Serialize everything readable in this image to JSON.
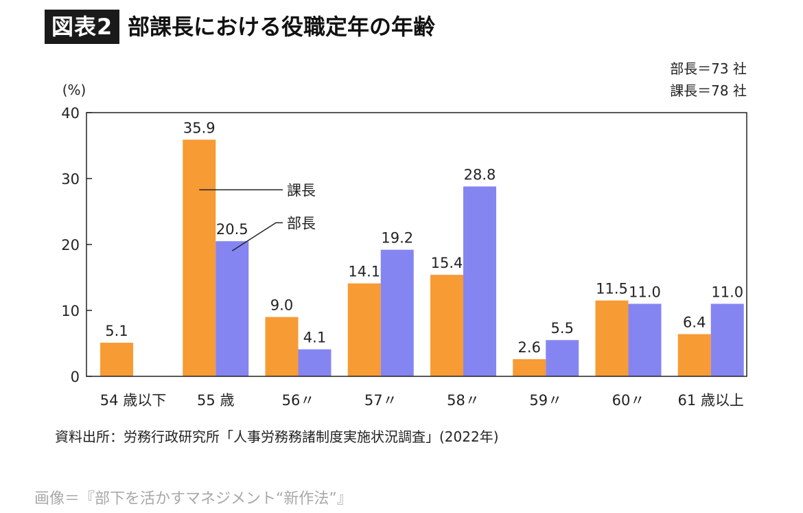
{
  "header": {
    "tag": "図表2",
    "title": "部課長における役職定年の年齢",
    "count_bucho": "部長＝73 社",
    "count_kacho": "課長＝78 社"
  },
  "chart_data": {
    "type": "bar",
    "ylabel": "(%)",
    "ylim": [
      0,
      40
    ],
    "yticks": [
      0,
      10,
      20,
      30,
      40
    ],
    "categories": [
      "54 歳以下",
      "55 歳",
      "56〃",
      "57〃",
      "58〃",
      "59〃",
      "60〃",
      "61 歳以上"
    ],
    "series": [
      {
        "name": "課長",
        "color": "#f79b34",
        "values": [
          5.1,
          35.9,
          9.0,
          14.1,
          15.4,
          2.6,
          11.5,
          6.4
        ],
        "labels": [
          "5.1",
          "35.9",
          "9.0",
          "14.1",
          "15.4",
          "2.6",
          "11.5",
          "6.4"
        ]
      },
      {
        "name": "部長",
        "color": "#8585f2",
        "values": [
          null,
          20.5,
          4.1,
          19.2,
          28.8,
          5.5,
          11.0,
          11.0
        ],
        "labels": [
          "",
          "20.5",
          "4.1",
          "19.2",
          "28.8",
          "5.5",
          "11.0",
          "11.0"
        ]
      }
    ],
    "grid": false,
    "legend": "callout labels on 55 歳 bars"
  },
  "source": "資料出所：労務行政研究所「人事労務務諸制度実施状況調査」(2022年)",
  "credit": "画像＝『部下を活かすマネジメント“新作法”』"
}
